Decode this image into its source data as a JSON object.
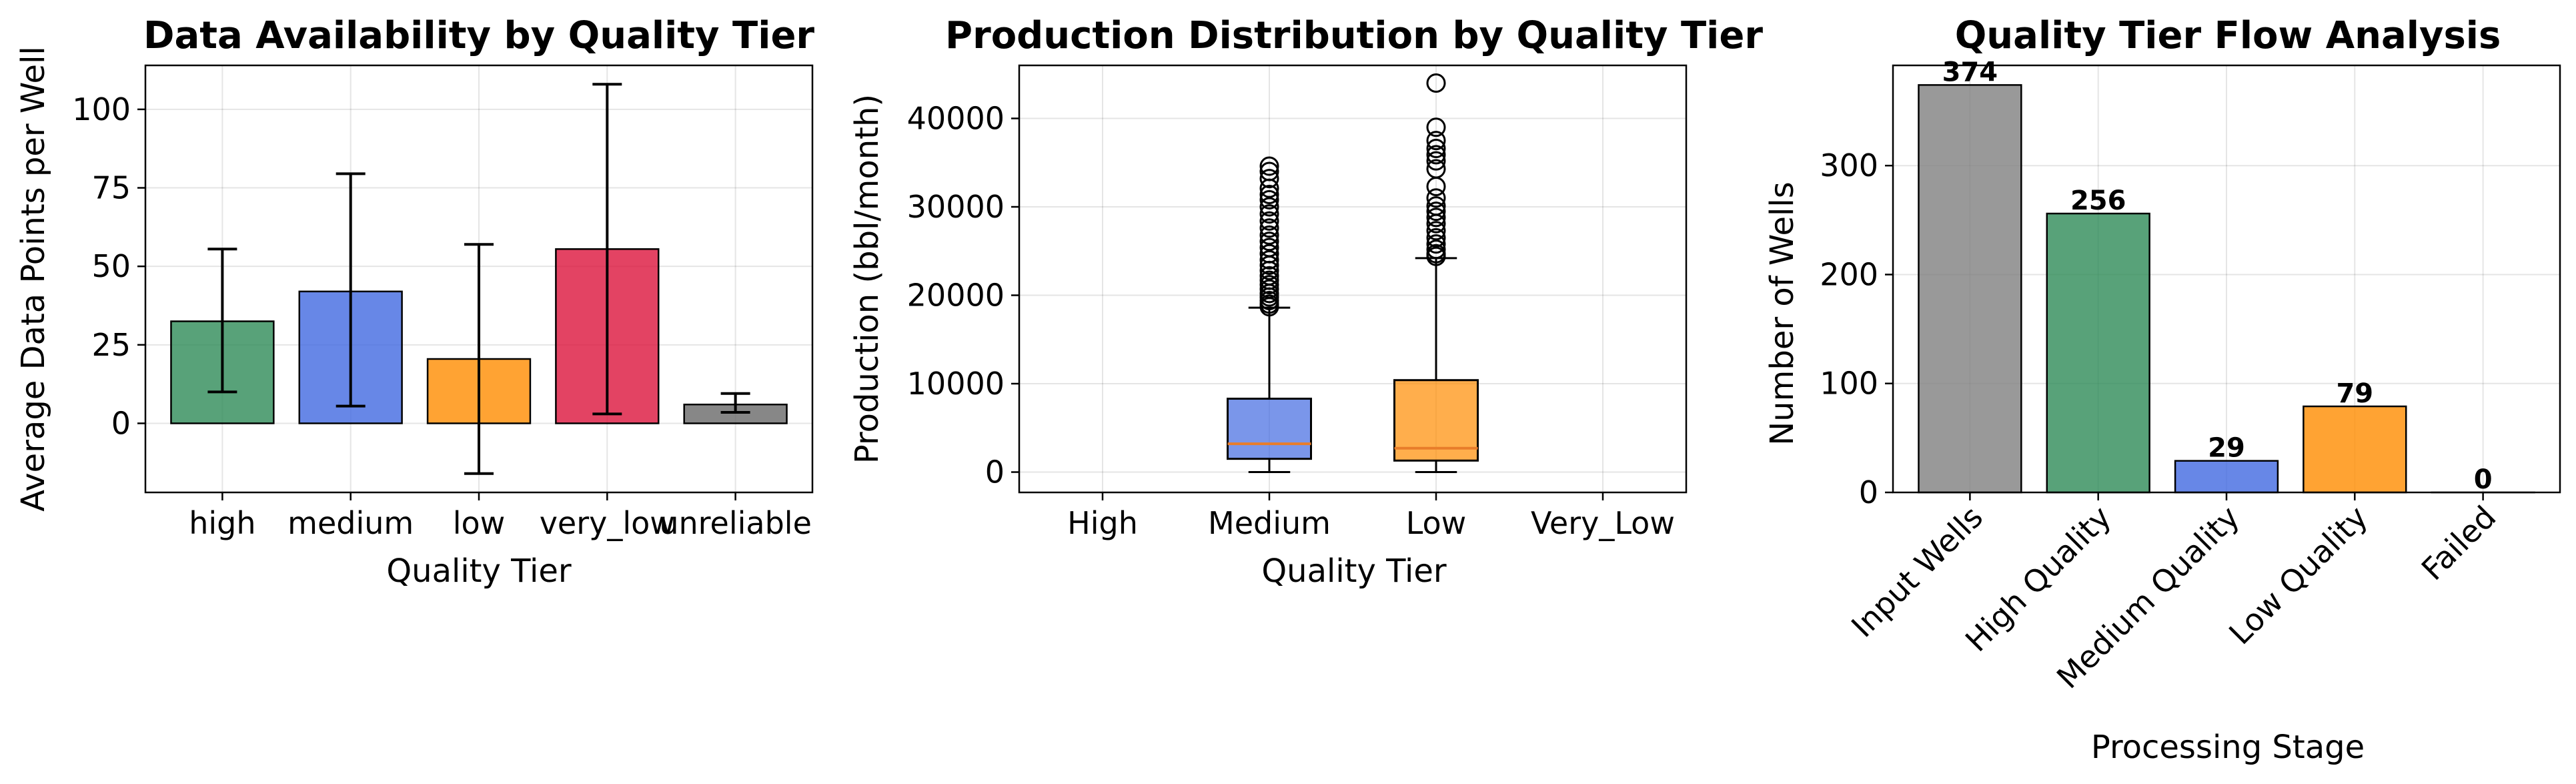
{
  "chart_data": [
    {
      "type": "bar",
      "title": "Data Availability by Quality Tier",
      "xlabel": "Quality Tier",
      "ylabel": "Average Data Points per Well",
      "categories": [
        "high",
        "medium",
        "low",
        "very_low",
        "unreliable"
      ],
      "values": [
        32.5,
        42,
        20.5,
        55.5,
        6
      ],
      "error_low": [
        10,
        5.5,
        -16,
        3,
        3.5
      ],
      "error_high": [
        55.5,
        79.5,
        57,
        108,
        9.5
      ],
      "ylim": [
        -22,
        114
      ],
      "yticks": [
        0,
        25,
        50,
        75,
        100
      ],
      "colors": [
        "#2E8B57",
        "#4169E1",
        "#FF8C00",
        "#DC143C",
        "#696969"
      ],
      "grid": true
    },
    {
      "type": "box",
      "title": "Production Distribution by Quality Tier",
      "xlabel": "Quality Tier",
      "ylabel": "Production (bbl/month)",
      "categories": [
        "High",
        "Medium",
        "Low",
        "Very_Low"
      ],
      "boxes": [
        null,
        {
          "whisker_low": 0,
          "q1": 1500,
          "median": 3200,
          "q3": 8300,
          "whisker_high": 18600,
          "outliers": [
            18700,
            19000,
            19400,
            19800,
            20200,
            20700,
            21200,
            21700,
            22200,
            22800,
            23400,
            24000,
            24700,
            25400,
            26100,
            26800,
            27600,
            28400,
            29200,
            30000,
            30800,
            31400,
            32100,
            33200,
            34000,
            34600
          ]
        },
        {
          "whisker_low": 0,
          "q1": 1300,
          "median": 2700,
          "q3": 10400,
          "whisker_high": 24200,
          "outliers": [
            24400,
            24700,
            25200,
            25800,
            26500,
            27300,
            28100,
            28800,
            29500,
            30100,
            31000,
            32300,
            34300,
            35200,
            35900,
            36600,
            37500,
            39000,
            44000
          ]
        },
        null
      ],
      "ylim": [
        -2300,
        46000
      ],
      "yticks": [
        0,
        10000,
        20000,
        30000,
        40000
      ],
      "colors": [
        "#4169E1",
        "#FF8C00"
      ],
      "median_color": "#E87D2A",
      "grid": true
    },
    {
      "type": "bar",
      "title": "Quality Tier Flow Analysis",
      "xlabel": "Processing Stage",
      "ylabel": "Number of Wells",
      "categories": [
        "Input Wells",
        "High Quality",
        "Medium Quality",
        "Low Quality",
        "Failed"
      ],
      "values": [
        374,
        256,
        29,
        79,
        0
      ],
      "labels": [
        "374",
        "256",
        "29",
        "79",
        "0"
      ],
      "ylim": [
        0,
        392
      ],
      "yticks": [
        0,
        100,
        200,
        300
      ],
      "colors": [
        "#808080",
        "#2E8B57",
        "#4169E1",
        "#FF8C00",
        "#DC143C"
      ],
      "grid": true
    }
  ]
}
